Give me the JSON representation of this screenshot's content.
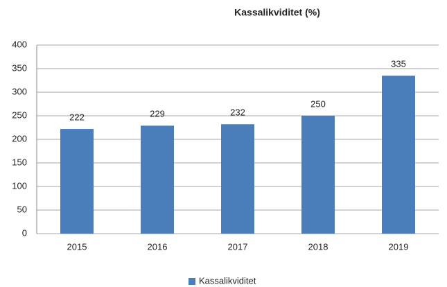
{
  "chart_data": {
    "type": "bar",
    "title": "Kassalikviditet (%)",
    "categories": [
      "2015",
      "2016",
      "2017",
      "2018",
      "2019"
    ],
    "series": [
      {
        "name": "Kassalikviditet",
        "color": "#4a7ebb",
        "values": [
          222,
          229,
          232,
          250,
          335
        ]
      }
    ],
    "ylim": [
      0,
      400
    ],
    "yticks": [
      0,
      50,
      100,
      150,
      200,
      250,
      300,
      350,
      400
    ],
    "grid": true,
    "legend": "bottom",
    "data_labels": true
  }
}
